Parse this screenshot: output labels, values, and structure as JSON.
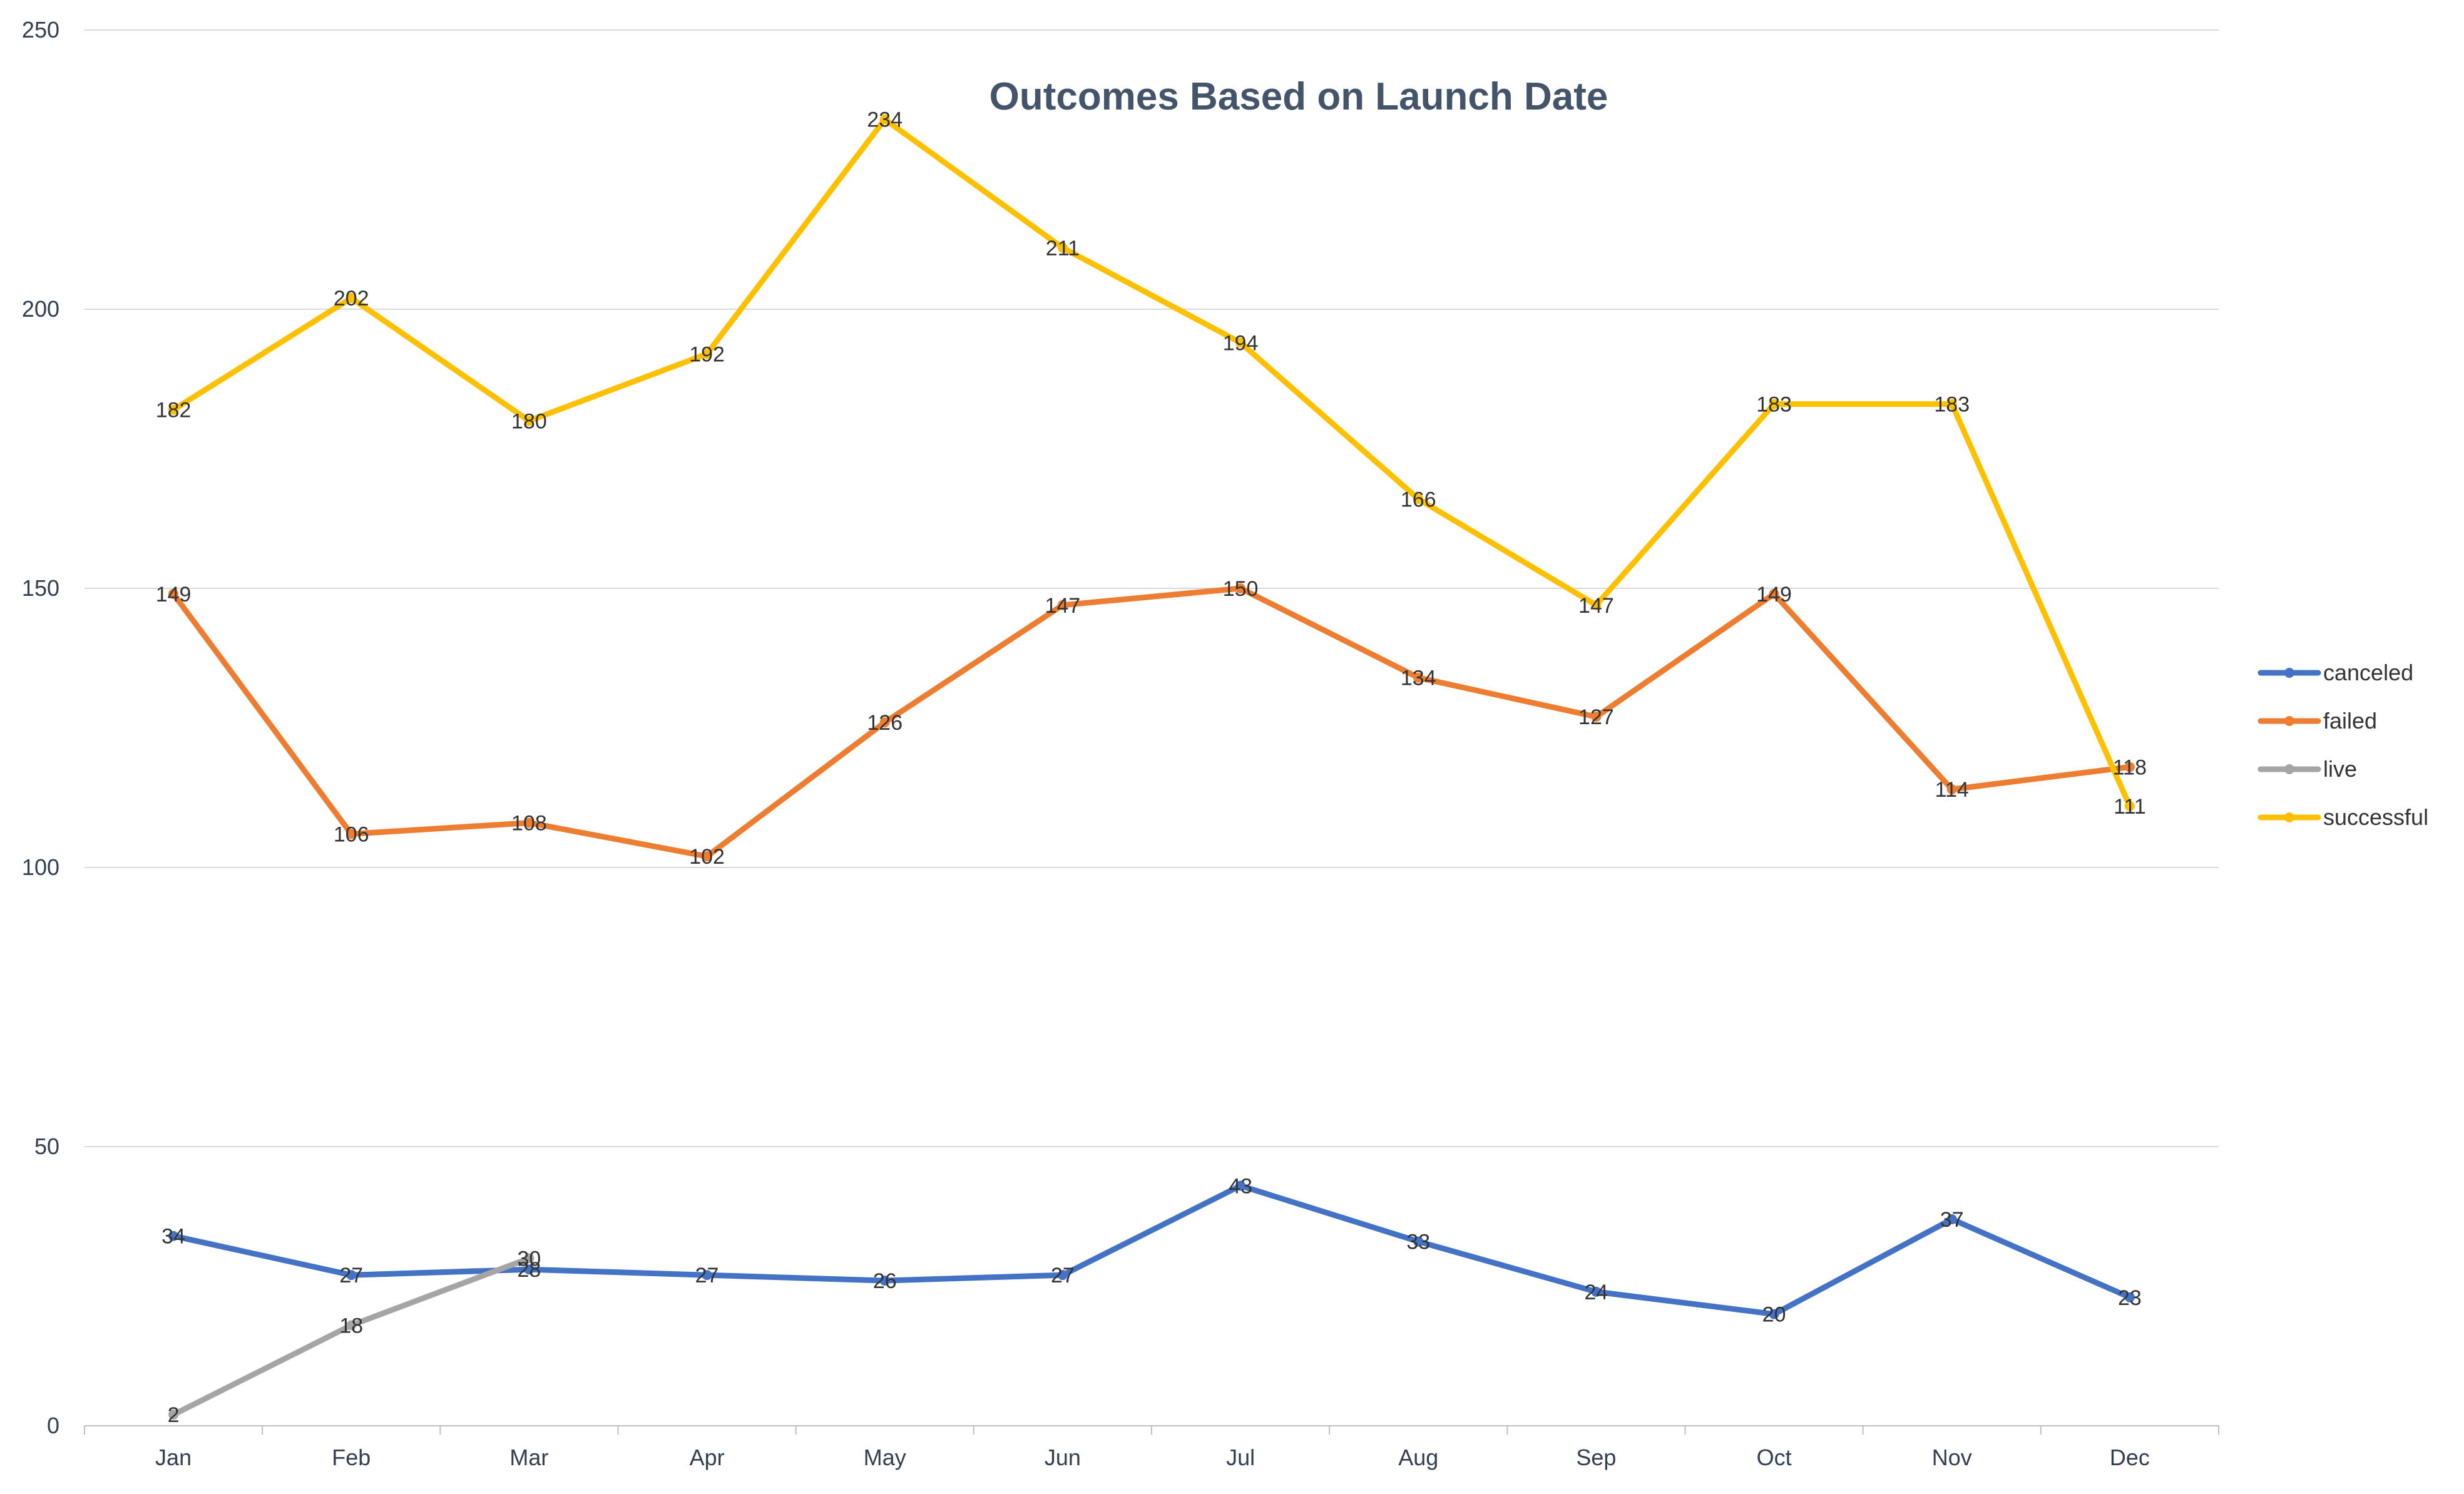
{
  "chart_data": {
    "type": "line",
    "title": "Outcomes Based on Launch Date",
    "xlabel": "",
    "ylabel": "",
    "categories": [
      "Jan",
      "Feb",
      "Mar",
      "Apr",
      "May",
      "Jun",
      "Jul",
      "Aug",
      "Sep",
      "Oct",
      "Nov",
      "Dec"
    ],
    "ylim": [
      0,
      250
    ],
    "yticks": [
      0,
      50,
      100,
      150,
      200,
      250
    ],
    "grid": "horizontal",
    "legend_position": "right",
    "series": [
      {
        "name": "canceled",
        "color": "#4472c4",
        "values": [
          34,
          27,
          28,
          27,
          26,
          27,
          43,
          33,
          24,
          20,
          37,
          23
        ]
      },
      {
        "name": "failed",
        "color": "#ed7d31",
        "values": [
          149,
          106,
          108,
          102,
          126,
          147,
          150,
          134,
          127,
          149,
          114,
          118
        ]
      },
      {
        "name": "live",
        "color": "#a5a5a5",
        "values": [
          2,
          18,
          30,
          null,
          null,
          null,
          null,
          null,
          null,
          null,
          null,
          null
        ]
      },
      {
        "name": "successful",
        "color": "#ffc000",
        "values": [
          182,
          202,
          180,
          192,
          234,
          211,
          194,
          166,
          147,
          183,
          183,
          111
        ]
      }
    ]
  }
}
